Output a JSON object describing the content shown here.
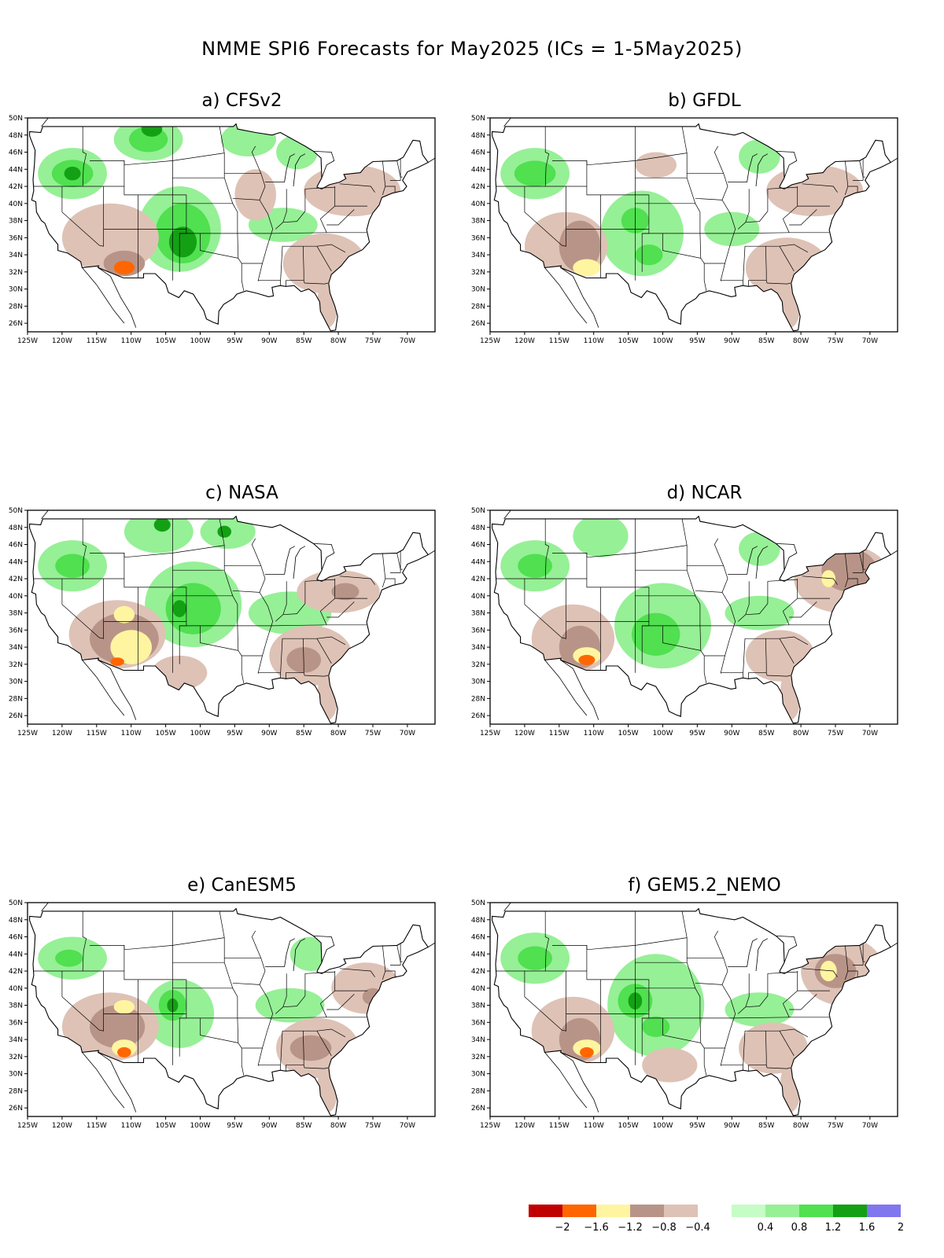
{
  "title": "NMME SPI6 Forecasts for May2025 (ICs = 1-5May2025)",
  "axes": {
    "lon_labels": [
      "125W",
      "120W",
      "115W",
      "110W",
      "105W",
      "100W",
      "95W",
      "90W",
      "85W",
      "80W",
      "75W",
      "70W"
    ],
    "lat_labels": [
      "50N",
      "48N",
      "46N",
      "44N",
      "42N",
      "40N",
      "38N",
      "36N",
      "34N",
      "32N",
      "30N",
      "28N",
      "26N"
    ]
  },
  "panels": [
    {
      "label": "a) CFSv2",
      "blobs": [
        {
          "c": 7,
          "lon": -118.5,
          "lat": 43.5,
          "rx": 5,
          "ry": 3
        },
        {
          "c": 8,
          "lon": -118.5,
          "lat": 43.5,
          "rx": 3,
          "ry": 1.6
        },
        {
          "c": 9,
          "lon": -118.5,
          "lat": 43.5,
          "rx": 1.2,
          "ry": 0.8
        },
        {
          "c": 7,
          "lon": -107.5,
          "lat": 47.5,
          "rx": 5,
          "ry": 2.5
        },
        {
          "c": 8,
          "lon": -107.5,
          "lat": 47.5,
          "rx": 2.8,
          "ry": 1.5
        },
        {
          "c": 9,
          "lon": -107,
          "lat": 48.7,
          "rx": 1.5,
          "ry": 0.9
        },
        {
          "c": 7,
          "lon": -103,
          "lat": 37,
          "rx": 6,
          "ry": 5
        },
        {
          "c": 8,
          "lon": -102.5,
          "lat": 36.5,
          "rx": 4,
          "ry": 3.5
        },
        {
          "c": 9,
          "lon": -102.5,
          "lat": 35.5,
          "rx": 2,
          "ry": 1.8
        },
        {
          "c": 7,
          "lon": -93,
          "lat": 47.5,
          "rx": 4,
          "ry": 2
        },
        {
          "c": 7,
          "lon": -86,
          "lat": 46,
          "rx": 3,
          "ry": 2
        },
        {
          "c": 7,
          "lon": -88,
          "lat": 37.5,
          "rx": 5,
          "ry": 2
        },
        {
          "c": 4,
          "lon": -113,
          "lat": 36,
          "rx": 7,
          "ry": 4
        },
        {
          "c": 4,
          "lon": -82,
          "lat": 33,
          "rx": 6,
          "ry": 3.5
        },
        {
          "c": 4,
          "lon": -81.5,
          "lat": 28.5,
          "rx": 1.5,
          "ry": 3
        },
        {
          "c": 4,
          "lon": -78,
          "lat": 41.5,
          "rx": 7,
          "ry": 3
        },
        {
          "c": 4,
          "lon": -92,
          "lat": 41,
          "rx": 3,
          "ry": 3
        },
        {
          "c": 3,
          "lon": -111,
          "lat": 33,
          "rx": 3,
          "ry": 1.5
        },
        {
          "c": 1,
          "lon": -111,
          "lat": 32.5,
          "rx": 1.5,
          "ry": 0.8
        }
      ]
    },
    {
      "label": "b) GFDL",
      "blobs": [
        {
          "c": 7,
          "lon": -118.5,
          "lat": 43.5,
          "rx": 5,
          "ry": 3
        },
        {
          "c": 8,
          "lon": -118.5,
          "lat": 43.5,
          "rx": 3,
          "ry": 1.5
        },
        {
          "c": 7,
          "lon": -103,
          "lat": 36.5,
          "rx": 6,
          "ry": 5
        },
        {
          "c": 8,
          "lon": -104,
          "lat": 38,
          "rx": 2,
          "ry": 1.5
        },
        {
          "c": 8,
          "lon": -102,
          "lat": 34,
          "rx": 2,
          "ry": 1.2
        },
        {
          "c": 7,
          "lon": -86,
          "lat": 45.5,
          "rx": 3,
          "ry": 2
        },
        {
          "c": 7,
          "lon": -90,
          "lat": 37,
          "rx": 4,
          "ry": 2
        },
        {
          "c": 4,
          "lon": -114,
          "lat": 35,
          "rx": 6,
          "ry": 4
        },
        {
          "c": 3,
          "lon": -112,
          "lat": 35,
          "rx": 3,
          "ry": 3
        },
        {
          "c": 2,
          "lon": -111,
          "lat": 32.5,
          "rx": 2,
          "ry": 1
        },
        {
          "c": 4,
          "lon": -82,
          "lat": 32.5,
          "rx": 6,
          "ry": 3.5
        },
        {
          "c": 4,
          "lon": -81.5,
          "lat": 28.5,
          "rx": 1.5,
          "ry": 3
        },
        {
          "c": 4,
          "lon": -78,
          "lat": 41.5,
          "rx": 7,
          "ry": 3
        },
        {
          "c": 4,
          "lon": -101,
          "lat": 44.5,
          "rx": 3,
          "ry": 1.5
        }
      ]
    },
    {
      "label": "c) NASA",
      "blobs": [
        {
          "c": 7,
          "lon": -118.5,
          "lat": 43.5,
          "rx": 5,
          "ry": 3
        },
        {
          "c": 8,
          "lon": -118.5,
          "lat": 43.5,
          "rx": 2.5,
          "ry": 1.4
        },
        {
          "c": 7,
          "lon": -106,
          "lat": 47.5,
          "rx": 5,
          "ry": 2.5
        },
        {
          "c": 9,
          "lon": -105.5,
          "lat": 48.3,
          "rx": 1.2,
          "ry": 0.8
        },
        {
          "c": 7,
          "lon": -96,
          "lat": 47.5,
          "rx": 4,
          "ry": 2
        },
        {
          "c": 9,
          "lon": -96.5,
          "lat": 47.5,
          "rx": 1,
          "ry": 0.7
        },
        {
          "c": 7,
          "lon": -101,
          "lat": 39,
          "rx": 7,
          "ry": 5
        },
        {
          "c": 8,
          "lon": -101,
          "lat": 38.5,
          "rx": 4,
          "ry": 3
        },
        {
          "c": 9,
          "lon": -103,
          "lat": 38.5,
          "rx": 1,
          "ry": 1
        },
        {
          "c": 7,
          "lon": -87,
          "lat": 38,
          "rx": 6,
          "ry": 2.5
        },
        {
          "c": 4,
          "lon": -112,
          "lat": 35.5,
          "rx": 7,
          "ry": 4
        },
        {
          "c": 3,
          "lon": -111,
          "lat": 35,
          "rx": 5,
          "ry": 3
        },
        {
          "c": 2,
          "lon": -110,
          "lat": 34,
          "rx": 3,
          "ry": 2
        },
        {
          "c": 2,
          "lon": -111,
          "lat": 37.8,
          "rx": 1.5,
          "ry": 1
        },
        {
          "c": 1,
          "lon": -112,
          "lat": 32.3,
          "rx": 1,
          "ry": 0.5
        },
        {
          "c": 4,
          "lon": -84,
          "lat": 33,
          "rx": 6,
          "ry": 3.5
        },
        {
          "c": 3,
          "lon": -85,
          "lat": 32.5,
          "rx": 2.5,
          "ry": 1.5
        },
        {
          "c": 4,
          "lon": -81.5,
          "lat": 28.5,
          "rx": 1.5,
          "ry": 3
        },
        {
          "c": 4,
          "lon": -80,
          "lat": 40.5,
          "rx": 6,
          "ry": 2.5
        },
        {
          "c": 3,
          "lon": -79,
          "lat": 40.5,
          "rx": 2,
          "ry": 1
        },
        {
          "c": 4,
          "lon": -103,
          "lat": 31,
          "rx": 4,
          "ry": 2
        }
      ]
    },
    {
      "label": "d) NCAR",
      "blobs": [
        {
          "c": 7,
          "lon": -118.5,
          "lat": 43.5,
          "rx": 5,
          "ry": 3
        },
        {
          "c": 8,
          "lon": -118.5,
          "lat": 43.5,
          "rx": 2.5,
          "ry": 1.4
        },
        {
          "c": 7,
          "lon": -109,
          "lat": 47,
          "rx": 4,
          "ry": 2.5
        },
        {
          "c": 7,
          "lon": -100,
          "lat": 36.5,
          "rx": 7,
          "ry": 5
        },
        {
          "c": 8,
          "lon": -101,
          "lat": 35.5,
          "rx": 3.5,
          "ry": 2.5
        },
        {
          "c": 7,
          "lon": -86,
          "lat": 45.5,
          "rx": 3,
          "ry": 2
        },
        {
          "c": 7,
          "lon": -86,
          "lat": 38,
          "rx": 5,
          "ry": 2
        },
        {
          "c": 4,
          "lon": -113,
          "lat": 35,
          "rx": 6,
          "ry": 4
        },
        {
          "c": 3,
          "lon": -112,
          "lat": 34,
          "rx": 3,
          "ry": 2.5
        },
        {
          "c": 2,
          "lon": -111,
          "lat": 33,
          "rx": 2,
          "ry": 1
        },
        {
          "c": 1,
          "lon": -111,
          "lat": 32.5,
          "rx": 1.2,
          "ry": 0.6
        },
        {
          "c": 4,
          "lon": -74,
          "lat": 42,
          "rx": 7,
          "ry": 4
        },
        {
          "c": 3,
          "lon": -73,
          "lat": 43,
          "rx": 4,
          "ry": 2.5
        },
        {
          "c": 2,
          "lon": -76,
          "lat": 42,
          "rx": 1,
          "ry": 1
        },
        {
          "c": 4,
          "lon": -83,
          "lat": 33,
          "rx": 5,
          "ry": 3
        },
        {
          "c": 4,
          "lon": -81.5,
          "lat": 28.5,
          "rx": 1.5,
          "ry": 3
        }
      ]
    },
    {
      "label": "e) CanESM5",
      "blobs": [
        {
          "c": 7,
          "lon": -118.5,
          "lat": 43.5,
          "rx": 5,
          "ry": 2.5
        },
        {
          "c": 8,
          "lon": -119,
          "lat": 43.5,
          "rx": 2,
          "ry": 1
        },
        {
          "c": 7,
          "lon": -103,
          "lat": 37,
          "rx": 5,
          "ry": 4
        },
        {
          "c": 8,
          "lon": -104,
          "lat": 38,
          "rx": 2,
          "ry": 1.8
        },
        {
          "c": 9,
          "lon": -104,
          "lat": 38,
          "rx": 0.8,
          "ry": 0.8
        },
        {
          "c": 7,
          "lon": -87,
          "lat": 38,
          "rx": 5,
          "ry": 2
        },
        {
          "c": 7,
          "lon": -84,
          "lat": 44,
          "rx": 3,
          "ry": 2
        },
        {
          "c": 4,
          "lon": -113,
          "lat": 35.5,
          "rx": 7,
          "ry": 4
        },
        {
          "c": 3,
          "lon": -112,
          "lat": 35.5,
          "rx": 4,
          "ry": 2.5
        },
        {
          "c": 2,
          "lon": -111,
          "lat": 37.8,
          "rx": 1.5,
          "ry": 0.8
        },
        {
          "c": 2,
          "lon": -111,
          "lat": 33,
          "rx": 1.8,
          "ry": 1
        },
        {
          "c": 1,
          "lon": -111,
          "lat": 32.5,
          "rx": 1,
          "ry": 0.6
        },
        {
          "c": 4,
          "lon": -83,
          "lat": 33,
          "rx": 6,
          "ry": 3.5
        },
        {
          "c": 3,
          "lon": -84,
          "lat": 33,
          "rx": 3,
          "ry": 1.5
        },
        {
          "c": 4,
          "lon": -81.5,
          "lat": 28.5,
          "rx": 1.5,
          "ry": 3
        },
        {
          "c": 4,
          "lon": -76,
          "lat": 40,
          "rx": 5,
          "ry": 3
        },
        {
          "c": 3,
          "lon": -75,
          "lat": 39,
          "rx": 1.5,
          "ry": 1
        }
      ]
    },
    {
      "label": "f) GEM5.2_NEMO",
      "blobs": [
        {
          "c": 7,
          "lon": -118.5,
          "lat": 43.5,
          "rx": 5,
          "ry": 3
        },
        {
          "c": 8,
          "lon": -118.5,
          "lat": 43.5,
          "rx": 2.5,
          "ry": 1.4
        },
        {
          "c": 7,
          "lon": -101,
          "lat": 38,
          "rx": 7,
          "ry": 6
        },
        {
          "c": 8,
          "lon": -104,
          "lat": 38.5,
          "rx": 2.5,
          "ry": 2
        },
        {
          "c": 9,
          "lon": -104,
          "lat": 38.5,
          "rx": 1,
          "ry": 1
        },
        {
          "c": 8,
          "lon": -101,
          "lat": 35.5,
          "rx": 2,
          "ry": 1.2
        },
        {
          "c": 7,
          "lon": -86,
          "lat": 37.5,
          "rx": 5,
          "ry": 2
        },
        {
          "c": 4,
          "lon": -113,
          "lat": 35,
          "rx": 6,
          "ry": 4
        },
        {
          "c": 3,
          "lon": -112,
          "lat": 34,
          "rx": 3,
          "ry": 2.5
        },
        {
          "c": 2,
          "lon": -111,
          "lat": 33,
          "rx": 2,
          "ry": 1
        },
        {
          "c": 1,
          "lon": -111,
          "lat": 32.5,
          "rx": 1,
          "ry": 0.6
        },
        {
          "c": 4,
          "lon": -74,
          "lat": 42,
          "rx": 6,
          "ry": 4
        },
        {
          "c": 3,
          "lon": -75,
          "lat": 42,
          "rx": 3,
          "ry": 2
        },
        {
          "c": 2,
          "lon": -76,
          "lat": 42,
          "rx": 1.2,
          "ry": 1.2
        },
        {
          "c": 4,
          "lon": -84,
          "lat": 33,
          "rx": 5,
          "ry": 3
        },
        {
          "c": 4,
          "lon": -81.5,
          "lat": 28.5,
          "rx": 1.5,
          "ry": 3
        },
        {
          "c": 4,
          "lon": -99,
          "lat": 31,
          "rx": 4,
          "ry": 2
        }
      ]
    }
  ],
  "legend": {
    "colors": [
      "#c00000",
      "#ff6600",
      "#fff5a0",
      "#b89488",
      "#dec2b6",
      "#ffffff",
      "#c6fcc6",
      "#96f096",
      "#50e050",
      "#14a014",
      "#8077ee"
    ],
    "labels": [
      "−2",
      "−1.6",
      "−1.2",
      "−0.8",
      "−0.4",
      "0.4",
      "0.8",
      "1.2",
      "1.6",
      "2"
    ]
  }
}
